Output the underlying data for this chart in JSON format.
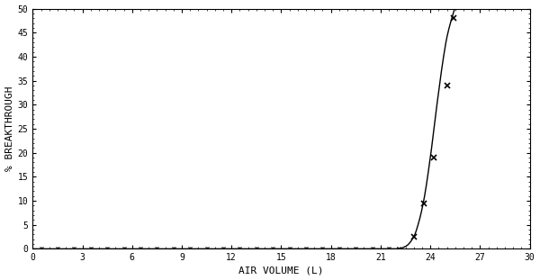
{
  "title": "",
  "xlabel": "AIR VOLUME (L)",
  "ylabel": "% BREAKTHROUGH",
  "xlim": [
    0,
    30
  ],
  "ylim": [
    0,
    50
  ],
  "xticks": [
    0,
    3,
    6,
    9,
    12,
    15,
    18,
    21,
    24,
    27,
    30
  ],
  "yticks": [
    0,
    5,
    10,
    15,
    20,
    25,
    30,
    35,
    40,
    45,
    50
  ],
  "curve_x": [
    0,
    21.0,
    22.0,
    22.5,
    23.0,
    23.3,
    23.6,
    24.0,
    24.4,
    24.8,
    25.0,
    25.3,
    25.5,
    26.0
  ],
  "curve_y": [
    0,
    0,
    0,
    0.5,
    2.5,
    5.5,
    10.0,
    19.0,
    30.0,
    40.0,
    44.0,
    48.0,
    50.0,
    50.0
  ],
  "marker_x": [
    23.0,
    23.6,
    24.2,
    25.0,
    25.4
  ],
  "marker_y": [
    2.5,
    9.5,
    19.0,
    34.0,
    48.0
  ],
  "zero_marker_x": [
    0.5,
    1.5,
    2.5,
    3.5,
    4.5,
    5.5,
    6.5,
    7.5,
    8.5,
    9.5,
    10.5,
    11.5,
    12.5,
    13.5,
    14.5,
    15.5,
    16.5,
    17.5,
    18.5,
    19.5,
    20.5,
    21.5,
    22.1
  ],
  "line_color": "#000000",
  "marker_color": "#000000",
  "background_color": "#ffffff",
  "font_family": "monospace",
  "figsize": [
    6.0,
    3.11
  ],
  "dpi": 100
}
